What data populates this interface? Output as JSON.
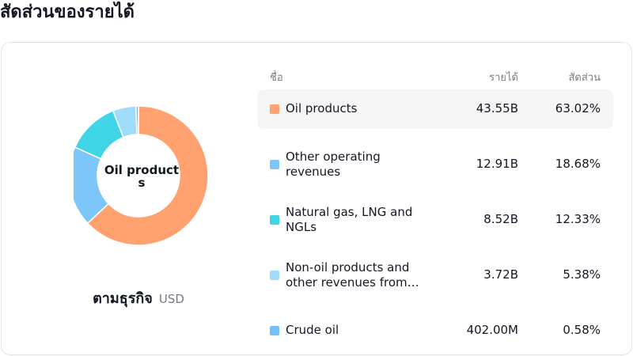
{
  "page": {
    "title": "สัดส่วนของรายได้"
  },
  "header": {
    "name": "ชื่อ",
    "revenue": "รายได้",
    "share": "สัดส่วน"
  },
  "center_label": "Oil products",
  "footer": {
    "by": "ตามธุรกิจ",
    "currency": "USD"
  },
  "colors": {
    "highlight_bg": "#f5f5f5",
    "card_border": "#e0e3eb"
  },
  "rows": [
    {
      "name": "Oil products",
      "revenue": "43.55B",
      "share": "63.02%",
      "color": "#ffa270"
    },
    {
      "name": "Other operating revenues",
      "revenue": "12.91B",
      "share": "18.68%",
      "color": "#7cc6f9"
    },
    {
      "name": "Natural gas, LNG and NGLs",
      "revenue": "8.52B",
      "share": "12.33%",
      "color": "#3fd4e6"
    },
    {
      "name": "Non-oil products and other revenues from…",
      "revenue": "3.72B",
      "share": "5.38%",
      "color": "#9edcfa"
    },
    {
      "name": "Crude oil",
      "revenue": "402.00M",
      "share": "0.58%",
      "color": "#73c0ff"
    }
  ],
  "chart_data": {
    "type": "pie",
    "variant": "donut",
    "categories": [
      "Oil products",
      "Other operating revenues",
      "Natural gas, LNG and NGLs",
      "Non-oil products and other revenues from…",
      "Crude oil"
    ],
    "values": [
      43.55,
      12.91,
      8.52,
      3.72,
      0.402
    ],
    "percent": [
      63.02,
      18.68,
      12.33,
      5.38,
      0.58
    ],
    "unit": "B USD",
    "colors": [
      "#ffa270",
      "#7cc6f9",
      "#3fd4e6",
      "#9edcfa",
      "#73c0ff"
    ],
    "highlighted": "Oil products"
  }
}
